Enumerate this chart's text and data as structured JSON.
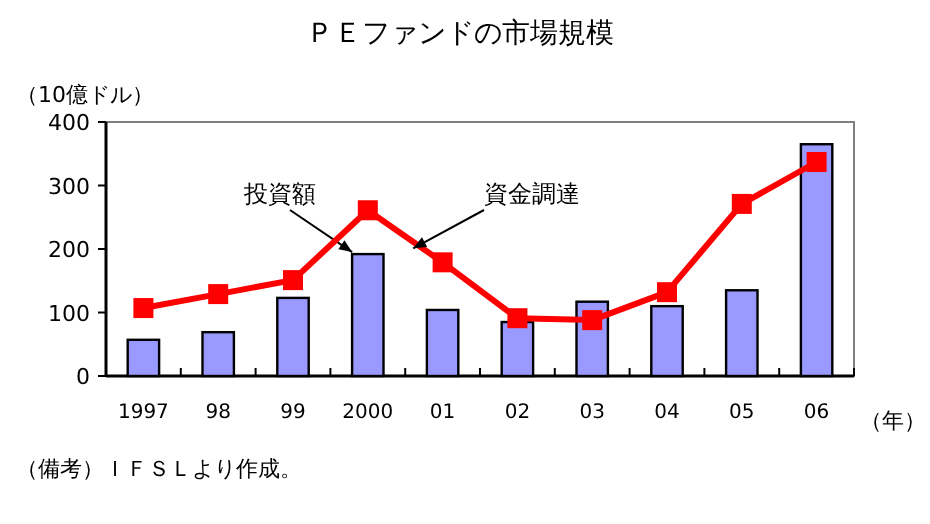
{
  "chart_data": {
    "type": "bar",
    "title": "ＰＥファンドの市場規模",
    "ylabel": "（10億ドル）",
    "xlabel": "（年）",
    "categories": [
      "1997",
      "98",
      "99",
      "2000",
      "01",
      "02",
      "03",
      "04",
      "05",
      "06"
    ],
    "series": [
      {
        "name": "投資額",
        "color": "#9999ff",
        "values": [
          57,
          69,
          123,
          192,
          104,
          85,
          117,
          110,
          135,
          365
        ]
      },
      {
        "name": "資金調達",
        "type": "line",
        "color": "#ff0000",
        "marker": "square",
        "values": [
          107,
          129,
          151,
          261,
          179,
          91,
          88,
          132,
          271,
          337
        ]
      }
    ],
    "ylim": [
      0,
      400
    ],
    "yticks": [
      0,
      100,
      200,
      300,
      400
    ],
    "grid": false,
    "legend": false,
    "annotations": [
      "（備考）ＩＦＳＬより作成。"
    ]
  }
}
